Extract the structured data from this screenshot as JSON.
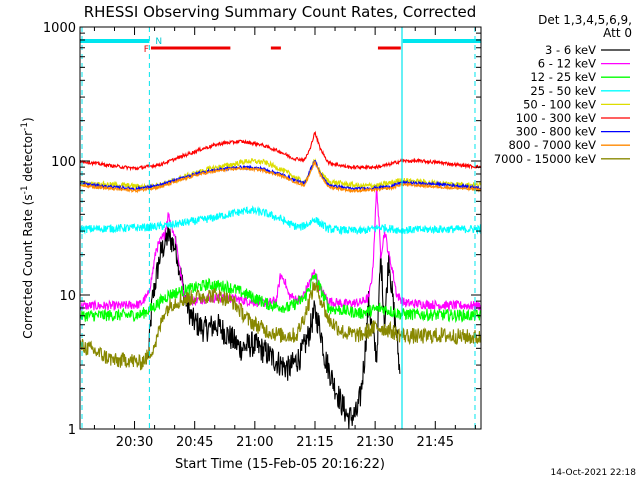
{
  "chart_data": {
    "type": "line",
    "title": "RHESSI Observing Summary Count Rates, Corrected",
    "xlabel": "Start Time (15-Feb-05 20:16:22)",
    "ylabel_main": "Corrected Count Rate (s",
    "ylabel_sup1": "-1",
    "ylabel_mid": " detector",
    "ylabel_sup2": "-1",
    "ylabel_end": ")",
    "timestamp": "14-Oct-2021 22:18",
    "x_range_minutes": [
      0,
      100
    ],
    "y_range": [
      1,
      1000
    ],
    "y_scale": "log",
    "x_ticks": [
      {
        "label": "20:30",
        "value": 13.6
      },
      {
        "label": "20:45",
        "value": 28.6
      },
      {
        "label": "21:00",
        "value": 43.6
      },
      {
        "label": "21:15",
        "value": 58.6
      },
      {
        "label": "21:30",
        "value": 73.6
      },
      {
        "label": "21:45",
        "value": 88.6
      }
    ],
    "y_ticks": [
      {
        "label": "1",
        "value": 1
      },
      {
        "label": "10",
        "value": 10
      },
      {
        "label": "100",
        "value": 100
      },
      {
        "label": "1000",
        "value": 1000
      }
    ],
    "legend": {
      "header_line1": "Det 1,3,4,5,6,9,",
      "header_line2": "Att 0",
      "position": "right",
      "entries": [
        {
          "label": "3 - 6 keV",
          "color": "#000000"
        },
        {
          "label": "6 - 12 keV",
          "color": "#ff00ff"
        },
        {
          "label": "12 - 25 keV",
          "color": "#00ff00"
        },
        {
          "label": "25 - 50 keV",
          "color": "#00ffff"
        },
        {
          "label": "50 - 100 keV",
          "color": "#dddd00"
        },
        {
          "label": "100 - 300 keV",
          "color": "#ff0000"
        },
        {
          "label": "300 - 800 keV",
          "color": "#0000ff"
        },
        {
          "label": "800 - 7000 keV",
          "color": "#ff8800"
        },
        {
          "label": "7000 - 15000 keV",
          "color": "#888800"
        }
      ]
    },
    "flag_labels": {
      "F": "F",
      "N": "N"
    },
    "night_segments": [
      [
        0,
        17.3
      ],
      [
        80.5,
        100
      ]
    ],
    "flare_segments": [
      [
        17.7,
        37.5
      ],
      [
        47.6,
        50.1
      ],
      [
        74.3,
        80
      ]
    ],
    "vertical_lines": {
      "dashed_cyan": [
        0.5,
        17.3,
        98.5
      ],
      "solid_cyan": [
        80.3
      ]
    },
    "series": [
      {
        "name": "3 - 6 keV",
        "color": "#000000",
        "points": [
          [
            17,
            3.3
          ],
          [
            18,
            9
          ],
          [
            20,
            20
          ],
          [
            22,
            28
          ],
          [
            24,
            22
          ],
          [
            26,
            10
          ],
          [
            28,
            6.5
          ],
          [
            31,
            5.5
          ],
          [
            34,
            6
          ],
          [
            37,
            5
          ],
          [
            40,
            4
          ],
          [
            43,
            4.3
          ],
          [
            46,
            3.8
          ],
          [
            49,
            3.2
          ],
          [
            52,
            2.8
          ],
          [
            55,
            3.5
          ],
          [
            57,
            5
          ],
          [
            58.5,
            7.5
          ],
          [
            60,
            5.5
          ],
          [
            61,
            3.5
          ],
          [
            63,
            2.3
          ],
          [
            65,
            1.6
          ],
          [
            67,
            1.2
          ],
          [
            69,
            1.3
          ],
          [
            70,
            1.8
          ],
          [
            71,
            3.5
          ],
          [
            72,
            9
          ],
          [
            73,
            5
          ],
          [
            74,
            3.5
          ],
          [
            75,
            20
          ],
          [
            76,
            6
          ],
          [
            77,
            20
          ],
          [
            78,
            9
          ],
          [
            79,
            5
          ],
          [
            79.8,
            2.5
          ]
        ]
      },
      {
        "name": "6 - 12 keV",
        "color": "#ff00ff",
        "points": [
          [
            0,
            8.3
          ],
          [
            10,
            8.3
          ],
          [
            15,
            8.5
          ],
          [
            17,
            10
          ],
          [
            18,
            14
          ],
          [
            19,
            22
          ],
          [
            20,
            25
          ],
          [
            21,
            28
          ],
          [
            22,
            40
          ],
          [
            23,
            32
          ],
          [
            24,
            25
          ],
          [
            25,
            15
          ],
          [
            26,
            10
          ],
          [
            28,
            9
          ],
          [
            32,
            9.5
          ],
          [
            37,
            9.5
          ],
          [
            42,
            9
          ],
          [
            47,
            8.7
          ],
          [
            49,
            9.2
          ],
          [
            50,
            14
          ],
          [
            51,
            13
          ],
          [
            52,
            10
          ],
          [
            55,
            9
          ],
          [
            57,
            12
          ],
          [
            58.5,
            15
          ],
          [
            60,
            11
          ],
          [
            62,
            9
          ],
          [
            66,
            8.6
          ],
          [
            70,
            8.8
          ],
          [
            72,
            9.5
          ],
          [
            73,
            15
          ],
          [
            74,
            65
          ],
          [
            75,
            20
          ],
          [
            76,
            30
          ],
          [
            77,
            20
          ],
          [
            78,
            15
          ],
          [
            79,
            10
          ],
          [
            81,
            8.7
          ],
          [
            90,
            8.4
          ],
          [
            100,
            8.3
          ]
        ]
      },
      {
        "name": "12 - 25 keV",
        "color": "#00ff00",
        "points": [
          [
            0,
            7
          ],
          [
            15,
            7.1
          ],
          [
            18,
            8
          ],
          [
            22,
            10
          ],
          [
            27,
            11
          ],
          [
            32,
            12
          ],
          [
            37,
            11.5
          ],
          [
            42,
            10
          ],
          [
            47,
            8.5
          ],
          [
            52,
            8
          ],
          [
            56,
            9.5
          ],
          [
            58.5,
            14
          ],
          [
            60,
            11
          ],
          [
            62,
            8
          ],
          [
            70,
            7.3
          ],
          [
            75,
            8
          ],
          [
            80,
            7.2
          ],
          [
            90,
            7.1
          ],
          [
            100,
            7
          ]
        ]
      },
      {
        "name": "25 - 50 keV",
        "color": "#00ffff",
        "points": [
          [
            0,
            31
          ],
          [
            10,
            31.5
          ],
          [
            17,
            32
          ],
          [
            22,
            33
          ],
          [
            27,
            35
          ],
          [
            32,
            37
          ],
          [
            37,
            40
          ],
          [
            42,
            43
          ],
          [
            46,
            41
          ],
          [
            50,
            37
          ],
          [
            53,
            33
          ],
          [
            55,
            32
          ],
          [
            57,
            34
          ],
          [
            58.5,
            37
          ],
          [
            60,
            34
          ],
          [
            62,
            31
          ],
          [
            70,
            30
          ],
          [
            75,
            32
          ],
          [
            80,
            30.5
          ],
          [
            90,
            31
          ],
          [
            100,
            31
          ]
        ]
      },
      {
        "name": "50 - 100 keV",
        "color": "#dddd00",
        "points": [
          [
            0,
            68
          ],
          [
            10,
            66
          ],
          [
            17,
            64
          ],
          [
            22,
            69
          ],
          [
            27,
            78
          ],
          [
            32,
            87
          ],
          [
            37,
            93
          ],
          [
            42,
            100
          ],
          [
            46,
            98
          ],
          [
            50,
            87
          ],
          [
            53,
            78
          ],
          [
            56,
            68
          ],
          [
            58.5,
            100
          ],
          [
            60,
            82
          ],
          [
            62,
            70
          ],
          [
            70,
            65
          ],
          [
            75,
            66
          ],
          [
            80,
            72
          ],
          [
            90,
            68
          ],
          [
            100,
            66
          ]
        ]
      },
      {
        "name": "100 - 300 keV",
        "color": "#ff0000",
        "points": [
          [
            0,
            100
          ],
          [
            8,
            92
          ],
          [
            14,
            88
          ],
          [
            20,
            94
          ],
          [
            25,
            107
          ],
          [
            30,
            122
          ],
          [
            35,
            135
          ],
          [
            40,
            140
          ],
          [
            45,
            133
          ],
          [
            50,
            117
          ],
          [
            53,
            105
          ],
          [
            56,
            102
          ],
          [
            57.5,
            125
          ],
          [
            58.5,
            165
          ],
          [
            60,
            122
          ],
          [
            62,
            97
          ],
          [
            67,
            90
          ],
          [
            74,
            90
          ],
          [
            77,
            94
          ],
          [
            80,
            100
          ],
          [
            85,
            100
          ],
          [
            90,
            97
          ],
          [
            95,
            93
          ],
          [
            100,
            90
          ]
        ]
      },
      {
        "name": "300 - 800 keV",
        "color": "#0000ff",
        "points": [
          [
            0,
            68
          ],
          [
            8,
            64
          ],
          [
            14,
            62
          ],
          [
            20,
            66
          ],
          [
            25,
            74
          ],
          [
            30,
            82
          ],
          [
            35,
            87
          ],
          [
            40,
            90
          ],
          [
            45,
            88
          ],
          [
            50,
            80
          ],
          [
            54,
            71
          ],
          [
            56,
            68
          ],
          [
            58.5,
            102
          ],
          [
            60,
            80
          ],
          [
            62,
            66
          ],
          [
            68,
            62
          ],
          [
            74,
            63
          ],
          [
            78,
            65
          ],
          [
            80,
            69
          ],
          [
            90,
            67
          ],
          [
            100,
            63
          ]
        ]
      },
      {
        "name": "800 - 7000 keV",
        "color": "#ff8800",
        "points": [
          [
            0,
            66
          ],
          [
            8,
            62
          ],
          [
            14,
            60
          ],
          [
            20,
            64
          ],
          [
            25,
            72
          ],
          [
            30,
            80
          ],
          [
            35,
            85
          ],
          [
            40,
            88
          ],
          [
            45,
            86
          ],
          [
            50,
            78
          ],
          [
            54,
            69
          ],
          [
            56,
            66
          ],
          [
            58.5,
            98
          ],
          [
            60,
            78
          ],
          [
            62,
            64
          ],
          [
            68,
            60
          ],
          [
            74,
            61
          ],
          [
            78,
            63
          ],
          [
            80,
            67
          ],
          [
            90,
            64
          ],
          [
            100,
            61
          ]
        ]
      },
      {
        "name": "7000 - 15000 keV",
        "color": "#888800",
        "points": [
          [
            0,
            4.2
          ],
          [
            3,
            3.9
          ],
          [
            6,
            3.5
          ],
          [
            9,
            3.2
          ],
          [
            12,
            3.3
          ],
          [
            15,
            3.1
          ],
          [
            17,
            3.5
          ],
          [
            19,
            4.5
          ],
          [
            21,
            7.5
          ],
          [
            23,
            8.7
          ],
          [
            26,
            9.3
          ],
          [
            30,
            9.8
          ],
          [
            34,
            10
          ],
          [
            38,
            9
          ],
          [
            42,
            6.5
          ],
          [
            46,
            5.5
          ],
          [
            50,
            5
          ],
          [
            54,
            5
          ],
          [
            56,
            7
          ],
          [
            58.5,
            12
          ],
          [
            60,
            9.5
          ],
          [
            62,
            6.5
          ],
          [
            66,
            5.2
          ],
          [
            70,
            5
          ],
          [
            74,
            5.8
          ],
          [
            77,
            5.5
          ],
          [
            80,
            5
          ],
          [
            85,
            4.9
          ],
          [
            90,
            5
          ],
          [
            95,
            4.9
          ],
          [
            100,
            4.8
          ]
        ]
      }
    ]
  }
}
